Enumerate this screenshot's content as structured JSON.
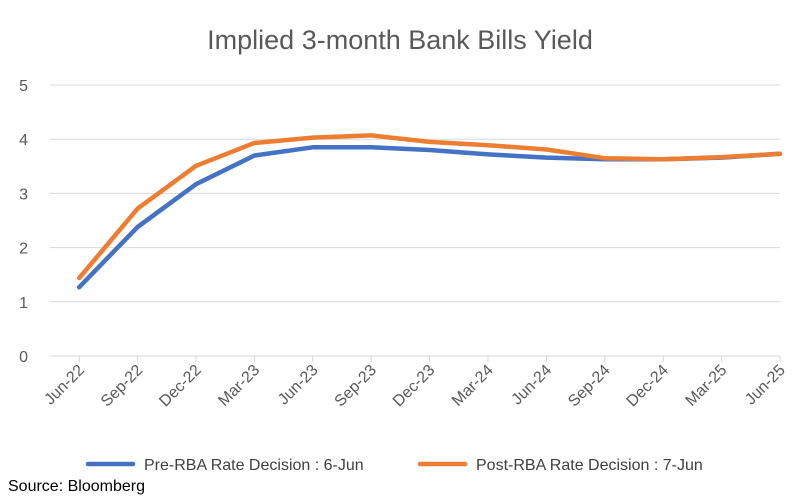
{
  "chart_data": {
    "type": "line",
    "title": "Implied 3-month Bank Bills Yield",
    "xlabel": "",
    "ylabel": "",
    "x": [
      "Jun-22",
      "Sep-22",
      "Dec-22",
      "Mar-23",
      "Jun-23",
      "Sep-23",
      "Dec-23",
      "Mar-24",
      "Jun-24",
      "Sep-24",
      "Dec-24",
      "Mar-25",
      "Jun-25"
    ],
    "ylim": [
      0,
      5
    ],
    "yticks": [
      0,
      1,
      2,
      3,
      4,
      5
    ],
    "grid": true,
    "legend_position": "bottom",
    "series": [
      {
        "name": "Pre-RBA Rate Decision : 6-Jun",
        "color": "#4472C4",
        "values": [
          1.27,
          2.38,
          3.17,
          3.7,
          3.85,
          3.85,
          3.8,
          3.72,
          3.66,
          3.63,
          3.63,
          3.66,
          3.73
        ]
      },
      {
        "name": "Post-RBA Rate Decision : 7-Jun",
        "color": "#ED7D31",
        "values": [
          1.44,
          2.72,
          3.51,
          3.93,
          4.03,
          4.07,
          3.95,
          3.89,
          3.81,
          3.65,
          3.63,
          3.67,
          3.73
        ]
      }
    ]
  },
  "source": "Source: Bloomberg"
}
